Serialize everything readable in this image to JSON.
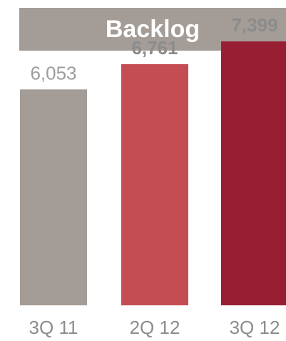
{
  "chart_data": {
    "type": "bar",
    "title": "Backlog",
    "categories": [
      "3Q 11",
      "2Q 12",
      "3Q 12"
    ],
    "values": [
      6053,
      6761,
      7399
    ],
    "value_labels": [
      "6,053",
      "6,761",
      "7,399"
    ],
    "colors": [
      "#a49c96",
      "#c44d53",
      "#981f33"
    ],
    "label_colors": [
      "#9c9c9c",
      "#8c8c8c",
      "#8c8c8c"
    ],
    "label_bold": [
      false,
      true,
      true
    ],
    "ylim": [
      0,
      7600
    ],
    "grid": false
  },
  "title_bar_color": "#a49c96"
}
